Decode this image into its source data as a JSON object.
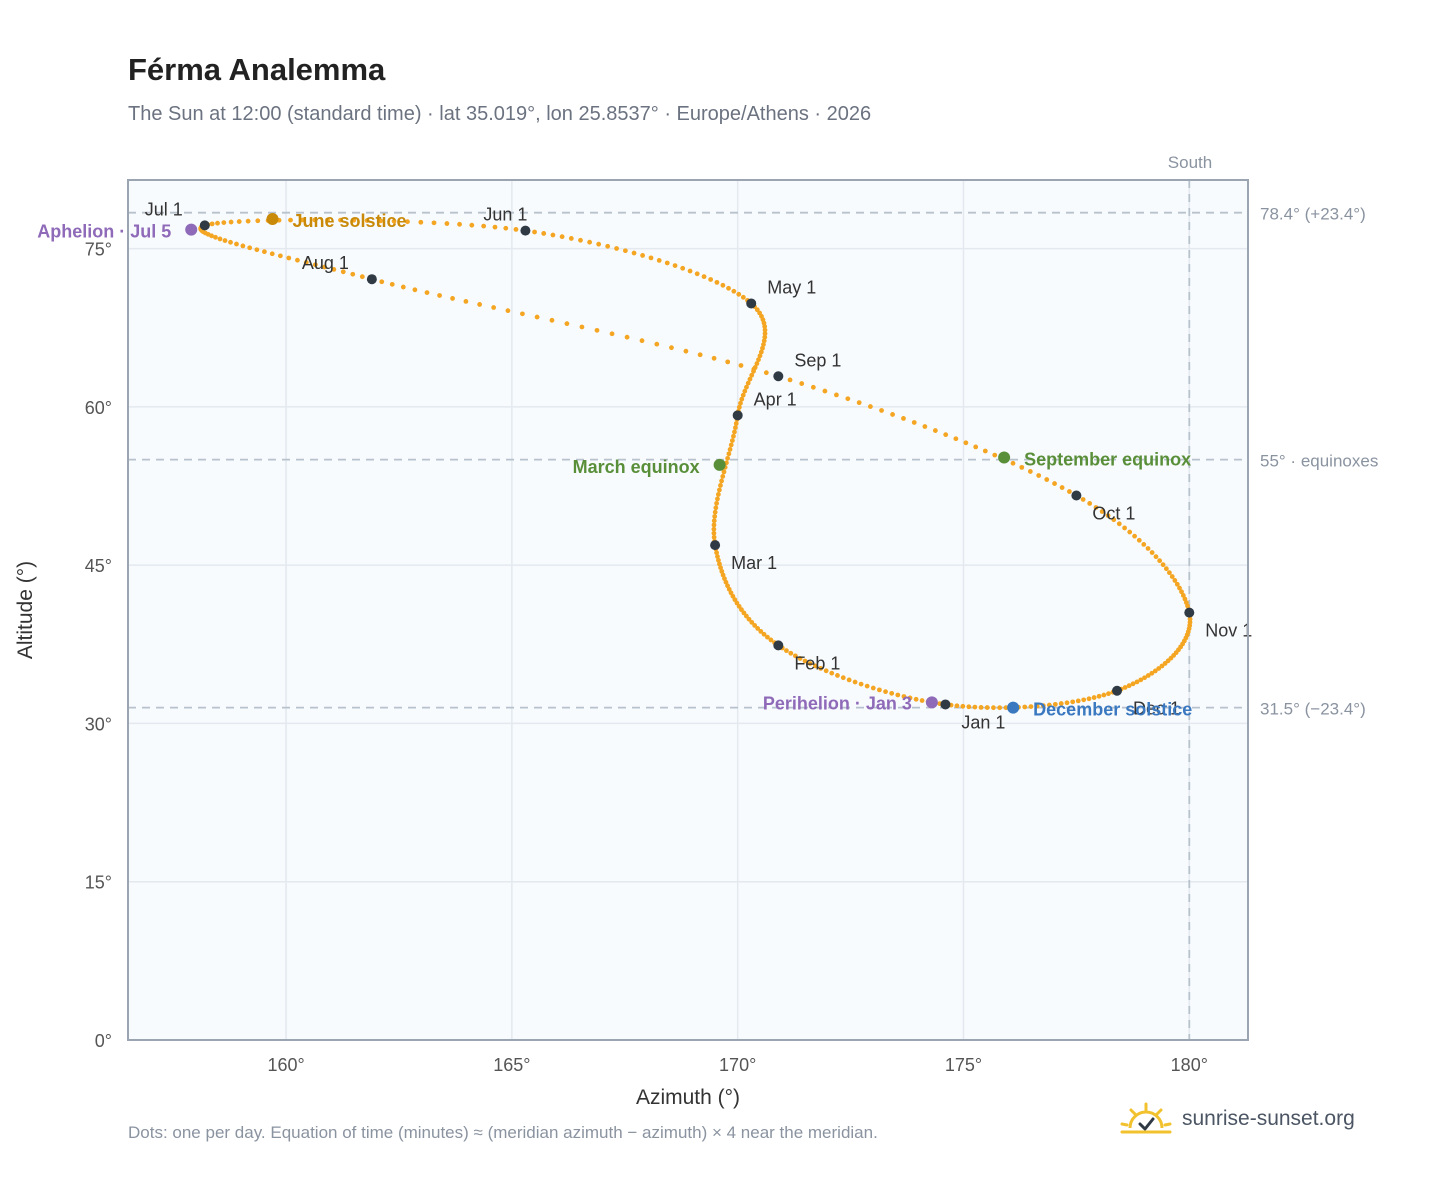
{
  "header": {
    "title": "Férma Analemma",
    "subtitle": "The Sun at 12:00 (standard time) · lat 35.019°, lon 25.8537° · Europe/Athens · 2026"
  },
  "footer": {
    "note": "Dots: one per day. Equation of time (minutes) ≈ (meridian azimuth − azimuth) × 4 near the meridian.",
    "brand": "sunrise-sunset.org",
    "brand_icon": "sun-check-icon"
  },
  "colors": {
    "curve": "#f4a623",
    "month_marker": "#2f3a45",
    "solstice_june": "#c98a0a",
    "equinox": "#5a8f3a",
    "december_solstice": "#3a78c0",
    "apsis": "#8e6ab8",
    "guide": "#b8c2cc",
    "plot_bg": "#f8fbfe",
    "frame": "#9aa5b1"
  },
  "chart_data": {
    "type": "scatter",
    "xlabel": "Azimuth (°)",
    "ylabel": "Altitude (°)",
    "xlim": [
      156.5,
      181.3
    ],
    "ylim": [
      0,
      81.5
    ],
    "x_ticks": [
      160,
      165,
      170,
      175,
      180
    ],
    "x_tick_labels": [
      "160°",
      "165°",
      "170°",
      "175°",
      "180°"
    ],
    "y_ticks": [
      0,
      15,
      30,
      45,
      60,
      75
    ],
    "y_tick_labels": [
      "0°",
      "15°",
      "30°",
      "45°",
      "60°",
      "75°"
    ],
    "grid": true,
    "meridian": {
      "azimuth": 180,
      "label": "South"
    },
    "reference_lines": [
      {
        "altitude": 78.4,
        "label": "78.4° (+23.4°)"
      },
      {
        "altitude": 55.0,
        "label": "55° · equinoxes"
      },
      {
        "altitude": 31.5,
        "label": "31.5° (−23.4°)"
      }
    ],
    "month_markers": [
      {
        "label": "Jan 1",
        "azimuth": 174.6,
        "altitude": 31.8
      },
      {
        "label": "Feb 1",
        "azimuth": 170.9,
        "altitude": 37.4
      },
      {
        "label": "Mar 1",
        "azimuth": 169.5,
        "altitude": 46.9
      },
      {
        "label": "Apr 1",
        "azimuth": 170.0,
        "altitude": 59.2
      },
      {
        "label": "May 1",
        "azimuth": 170.3,
        "altitude": 69.8
      },
      {
        "label": "Jun 1",
        "azimuth": 165.3,
        "altitude": 76.7
      },
      {
        "label": "Jul 1",
        "azimuth": 158.2,
        "altitude": 77.2
      },
      {
        "label": "Aug 1",
        "azimuth": 161.9,
        "altitude": 72.1
      },
      {
        "label": "Sep 1",
        "azimuth": 170.9,
        "altitude": 62.9
      },
      {
        "label": "Oct 1",
        "azimuth": 177.5,
        "altitude": 51.6
      },
      {
        "label": "Nov 1",
        "azimuth": 180.0,
        "altitude": 40.5
      },
      {
        "label": "Dec 1",
        "azimuth": 178.4,
        "altitude": 33.1
      }
    ],
    "special_points": [
      {
        "label": "Perihelion · Jan 3",
        "azimuth": 174.3,
        "altitude": 32.0,
        "kind": "apsis"
      },
      {
        "label": "March equinox",
        "azimuth": 169.6,
        "altitude": 54.5,
        "kind": "equinox"
      },
      {
        "label": "June solstice",
        "azimuth": 159.7,
        "altitude": 77.8,
        "kind": "solstice_june"
      },
      {
        "label": "Aphelion · Jul 5",
        "azimuth": 157.9,
        "altitude": 76.8,
        "kind": "apsis"
      },
      {
        "label": "September equinox",
        "azimuth": 175.9,
        "altitude": 55.2,
        "kind": "equinox"
      },
      {
        "label": "December solstice",
        "azimuth": 176.1,
        "altitude": 31.5,
        "kind": "december_solstice"
      }
    ]
  }
}
